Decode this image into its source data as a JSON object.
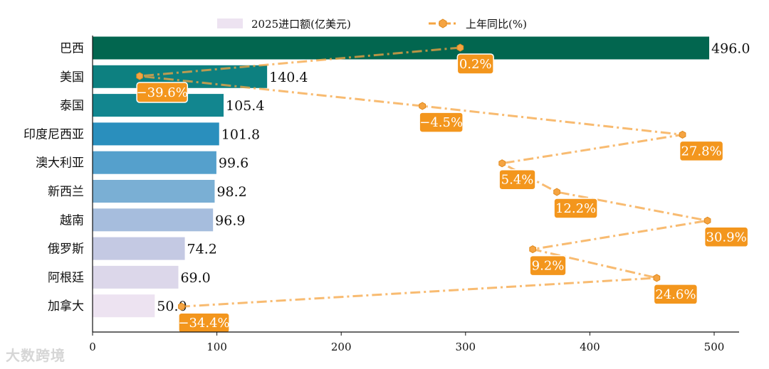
{
  "chart_data": {
    "type": "bar",
    "orientation": "horizontal",
    "categories": [
      "巴西",
      "美国",
      "泰国",
      "印度尼西亚",
      "澳大利亚",
      "新西兰",
      "越南",
      "俄罗斯",
      "阿根廷",
      "加拿大"
    ],
    "series": [
      {
        "name": "2025进口额(亿美元)",
        "type": "bar",
        "values": [
          496.0,
          140.4,
          105.4,
          101.8,
          99.6,
          98.2,
          96.9,
          74.2,
          69.0,
          50.0
        ],
        "value_labels": [
          "496.0",
          "140.4",
          "105.4",
          "101.8",
          "99.6",
          "98.2",
          "96.9",
          "74.2",
          "69.0",
          "50.0"
        ],
        "colors": [
          "#02664f",
          "#0d8080",
          "#12868f",
          "#2a8fbd",
          "#55a0cc",
          "#7aafd4",
          "#a6bddd",
          "#c4c9e3",
          "#dcd7ea",
          "#ede3f1"
        ]
      },
      {
        "name": "上年同比(%)",
        "type": "line",
        "values": [
          0.2,
          -39.6,
          -4.5,
          27.8,
          5.4,
          12.2,
          30.9,
          9.2,
          24.6,
          -34.4
        ],
        "value_labels": [
          "0.2%",
          "-39.6%",
          "-4.5%",
          "27.8%",
          "5.4%",
          "12.2%",
          "30.9%",
          "9.2%",
          "24.6%",
          "-34.4%"
        ],
        "color": "#f5a442"
      }
    ],
    "x_ticks": [
      "0",
      "100",
      "200",
      "300",
      "400",
      "500"
    ],
    "xlim": [
      0,
      520
    ],
    "legend_position": "top"
  },
  "watermark": "大数跨境"
}
